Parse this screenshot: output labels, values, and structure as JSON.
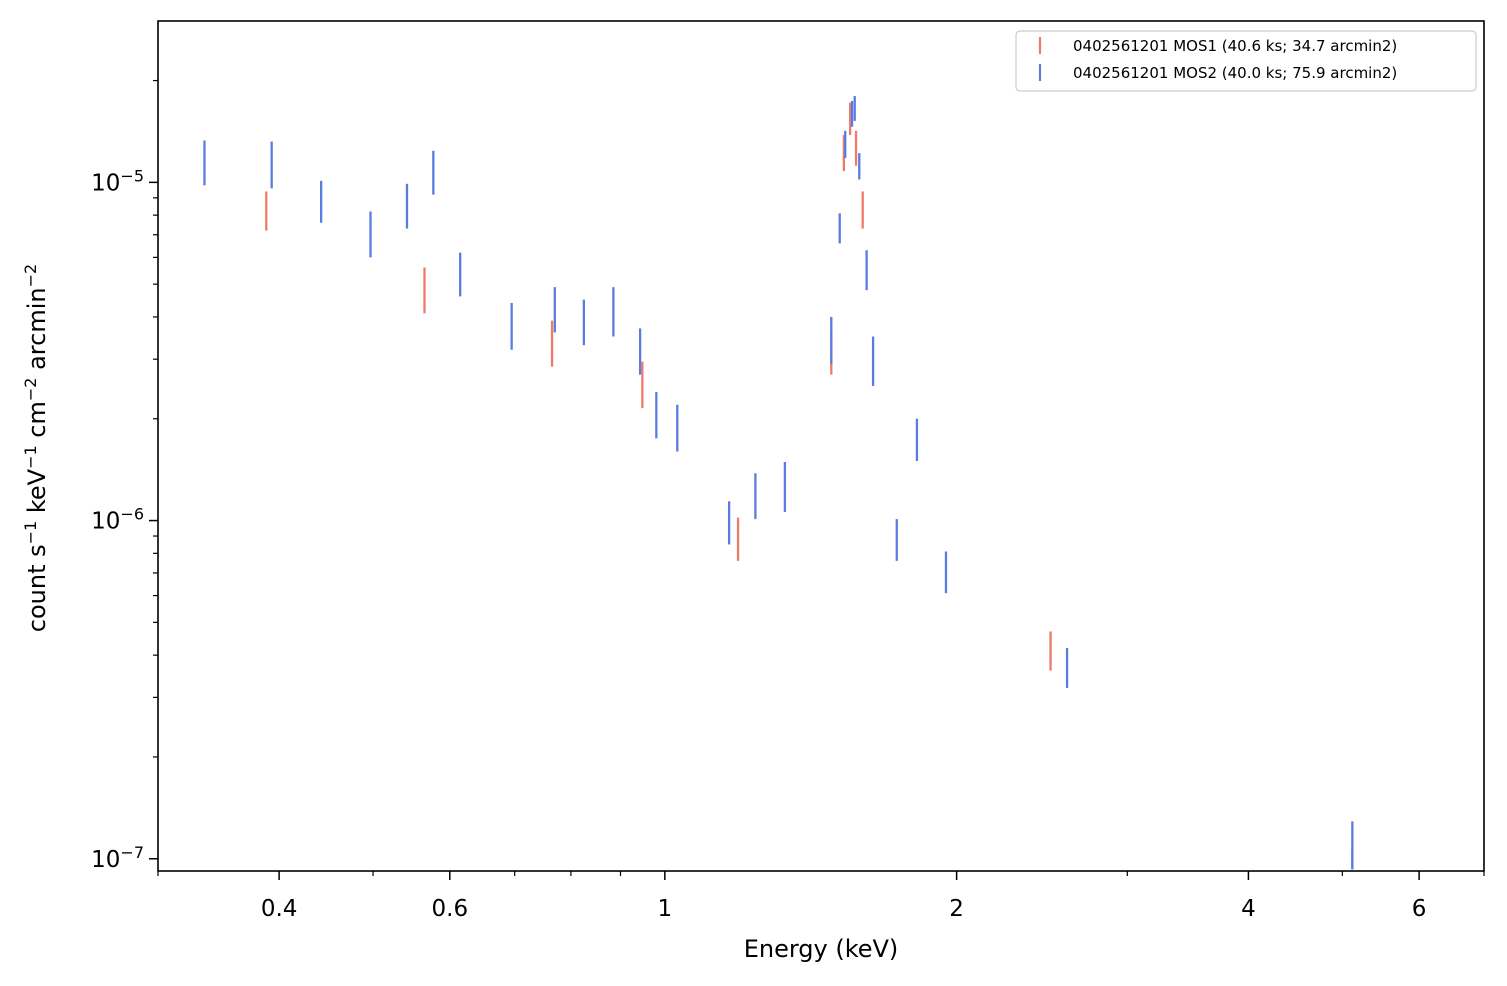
{
  "chart_data": {
    "type": "scatter",
    "xlabel": "Energy (keV)",
    "ylabel_parts": {
      "count": "count s",
      "sup1": "−1",
      "kev": " keV",
      "sup2": "−1",
      "cm": " cm",
      "sup3": "−2",
      "arcmin": " arcmin",
      "sup4": "−2"
    },
    "xscale": "log",
    "yscale": "log",
    "xlim": [
      0.3,
      7.0
    ],
    "ylim": [
      9.2e-08,
      3e-05
    ],
    "x_ticks": [
      {
        "value": 0.4,
        "label": "0.4"
      },
      {
        "value": 0.6,
        "label": "0.6"
      },
      {
        "value": 1.0,
        "label": "1"
      },
      {
        "value": 2.0,
        "label": "2"
      },
      {
        "value": 4.0,
        "label": "4"
      },
      {
        "value": 6.0,
        "label": "6"
      }
    ],
    "y_ticks": [
      {
        "value": 1e-05,
        "base": "10",
        "exp": "−5"
      },
      {
        "value": 1e-06,
        "base": "10",
        "exp": "−6"
      },
      {
        "value": 1e-07,
        "base": "10",
        "exp": "−7"
      }
    ],
    "legend_position": "top-right",
    "series": [
      {
        "name": "0402561201 MOS1 (40.6 ks; 34.7 arcmin2)",
        "color": "#f07a68",
        "points": [
          {
            "x": 0.388,
            "y_low": 7.2e-06,
            "y_high": 9.4e-06
          },
          {
            "x": 0.565,
            "y_low": 4.1e-06,
            "y_high": 5.6e-06
          },
          {
            "x": 0.765,
            "y_low": 2.85e-06,
            "y_high": 3.9e-06
          },
          {
            "x": 0.948,
            "y_low": 2.15e-06,
            "y_high": 2.95e-06
          },
          {
            "x": 1.19,
            "y_low": 7.6e-07,
            "y_high": 1.02e-06
          },
          {
            "x": 1.485,
            "y_low": 2.7e-06,
            "y_high": 3.6e-06
          },
          {
            "x": 1.53,
            "y_low": 1.08e-05,
            "y_high": 1.38e-05
          },
          {
            "x": 1.553,
            "y_low": 1.38e-05,
            "y_high": 1.72e-05
          },
          {
            "x": 1.575,
            "y_low": 1.12e-05,
            "y_high": 1.42e-05
          },
          {
            "x": 1.6,
            "y_low": 7.3e-06,
            "y_high": 9.4e-06
          },
          {
            "x": 2.5,
            "y_low": 3.6e-07,
            "y_high": 4.7e-07
          },
          {
            "x": 5.12,
            "y_low": 9.3e-08,
            "y_high": 1.06e-07
          }
        ]
      },
      {
        "name": "0402561201 MOS2 (40.0 ks; 75.9 arcmin2)",
        "color": "#5a7ce0",
        "points": [
          {
            "x": 0.335,
            "y_low": 9.8e-06,
            "y_high": 1.33e-05
          },
          {
            "x": 0.393,
            "y_low": 9.6e-06,
            "y_high": 1.32e-05
          },
          {
            "x": 0.442,
            "y_low": 7.6e-06,
            "y_high": 1.01e-05
          },
          {
            "x": 0.497,
            "y_low": 6e-06,
            "y_high": 8.2e-06
          },
          {
            "x": 0.542,
            "y_low": 7.3e-06,
            "y_high": 9.9e-06
          },
          {
            "x": 0.577,
            "y_low": 9.2e-06,
            "y_high": 1.24e-05
          },
          {
            "x": 0.615,
            "y_low": 4.6e-06,
            "y_high": 6.2e-06
          },
          {
            "x": 0.695,
            "y_low": 3.2e-06,
            "y_high": 4.4e-06
          },
          {
            "x": 0.77,
            "y_low": 3.6e-06,
            "y_high": 4.9e-06
          },
          {
            "x": 0.825,
            "y_low": 3.3e-06,
            "y_high": 4.5e-06
          },
          {
            "x": 0.885,
            "y_low": 3.5e-06,
            "y_high": 4.9e-06
          },
          {
            "x": 0.943,
            "y_low": 2.7e-06,
            "y_high": 3.7e-06
          },
          {
            "x": 0.98,
            "y_low": 1.75e-06,
            "y_high": 2.4e-06
          },
          {
            "x": 1.03,
            "y_low": 1.6e-06,
            "y_high": 2.2e-06
          },
          {
            "x": 1.165,
            "y_low": 8.5e-07,
            "y_high": 1.14e-06
          },
          {
            "x": 1.24,
            "y_low": 1.01e-06,
            "y_high": 1.38e-06
          },
          {
            "x": 1.33,
            "y_low": 1.06e-06,
            "y_high": 1.49e-06
          },
          {
            "x": 1.485,
            "y_low": 2.9e-06,
            "y_high": 4e-06
          },
          {
            "x": 1.515,
            "y_low": 6.6e-06,
            "y_high": 8.1e-06
          },
          {
            "x": 1.535,
            "y_low": 1.18e-05,
            "y_high": 1.42e-05
          },
          {
            "x": 1.56,
            "y_low": 1.46e-05,
            "y_high": 1.74e-05
          },
          {
            "x": 1.57,
            "y_low": 1.52e-05,
            "y_high": 1.8e-05
          },
          {
            "x": 1.587,
            "y_low": 1.02e-05,
            "y_high": 1.22e-05
          },
          {
            "x": 1.615,
            "y_low": 4.8e-06,
            "y_high": 6.3e-06
          },
          {
            "x": 1.64,
            "y_low": 2.5e-06,
            "y_high": 3.5e-06
          },
          {
            "x": 1.735,
            "y_low": 7.6e-07,
            "y_high": 1.01e-06
          },
          {
            "x": 1.82,
            "y_low": 1.5e-06,
            "y_high": 2e-06
          },
          {
            "x": 1.95,
            "y_low": 6.1e-07,
            "y_high": 8.1e-07
          },
          {
            "x": 2.6,
            "y_low": 3.2e-07,
            "y_high": 4.2e-07
          },
          {
            "x": 5.12,
            "y_low": 9.3e-08,
            "y_high": 1.29e-07
          }
        ]
      }
    ]
  }
}
